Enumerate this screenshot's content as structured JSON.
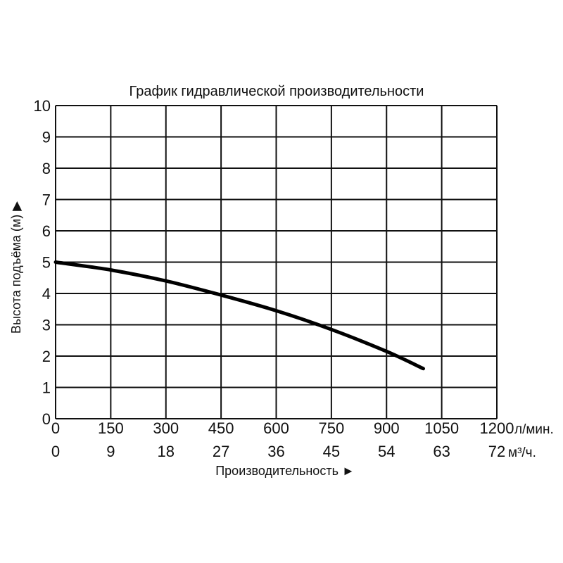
{
  "chart_data": {
    "type": "line",
    "title": "График гидравлической производительности",
    "ylabel": "Высота подъёма (м) ▶",
    "xlabel": "Производительность ►",
    "ylim": [
      0,
      10
    ],
    "yticks": [
      "0",
      "1",
      "2",
      "3",
      "4",
      "5",
      "6",
      "7",
      "8",
      "9",
      "10"
    ],
    "xlim": [
      0,
      1200
    ],
    "x_ticks_primary": [
      "0",
      "150",
      "300",
      "450",
      "600",
      "750",
      "900",
      "1050",
      "1200"
    ],
    "x_unit_primary": "л/мин.",
    "x_ticks_secondary": [
      "0",
      "9",
      "18",
      "27",
      "36",
      "45",
      "54",
      "63",
      "72"
    ],
    "x_unit_secondary": "м³/ч.",
    "grid": true,
    "series": [
      {
        "x": [
          0,
          150,
          300,
          450,
          600,
          750,
          900,
          1000
        ],
        "y": [
          5.0,
          4.75,
          4.4,
          3.95,
          3.45,
          2.85,
          2.15,
          1.6
        ],
        "color": "#000000"
      }
    ]
  }
}
